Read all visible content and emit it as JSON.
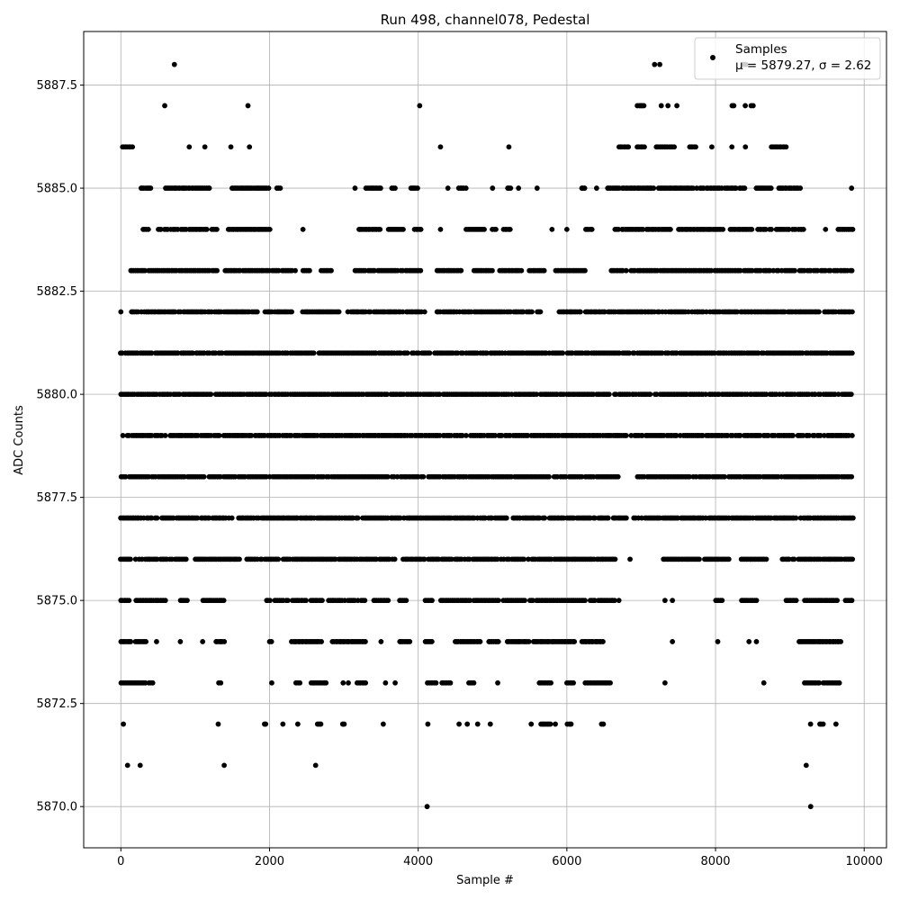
{
  "chart_data": {
    "type": "scatter",
    "title": "Run 498, channel078, Pedestal",
    "xlabel": "Sample #",
    "ylabel": "ADC Counts",
    "xlim": [
      -500,
      10300
    ],
    "ylim": [
      5869.0,
      5888.8
    ],
    "x_ticks": [
      0,
      2000,
      4000,
      6000,
      8000,
      10000
    ],
    "x_tick_labels": [
      "0",
      "2000",
      "4000",
      "6000",
      "8000",
      "10000"
    ],
    "y_ticks": [
      5870.0,
      5872.5,
      5875.0,
      5877.5,
      5880.0,
      5882.5,
      5885.0,
      5887.5
    ],
    "y_tick_labels": [
      "5870.0",
      "5872.5",
      "5875.0",
      "5877.5",
      "5880.0",
      "5882.5",
      "5885.0",
      "5887.5"
    ],
    "grid": true,
    "legend": {
      "placement": "top-right",
      "series_label": "Samples",
      "stats_label": "μ = 5879.27, σ = 2.62"
    },
    "series": [
      {
        "name": "Samples",
        "color": "#000000",
        "n_samples": 9850,
        "mean": 5879.27,
        "std": 2.62,
        "level_ranges": [
          {
            "y": 5870,
            "ranges": [
              [
                4120,
                4120
              ],
              [
                9280,
                9280
              ]
            ]
          },
          {
            "y": 5871,
            "ranges": [
              [
                90,
                90
              ],
              [
                260,
                260
              ],
              [
                1390,
                1390
              ],
              [
                2620,
                2620
              ],
              [
                9220,
                9220
              ]
            ]
          },
          {
            "y": 5872,
            "ranges": [
              [
                30,
                40
              ],
              [
                1310,
                1310
              ],
              [
                1930,
                1960
              ],
              [
                2180,
                2180
              ],
              [
                2380,
                2380
              ],
              [
                2650,
                2700
              ],
              [
                2980,
                3010
              ],
              [
                3530,
                3530
              ],
              [
                4130,
                4130
              ],
              [
                4550,
                4550
              ],
              [
                4660,
                4660
              ],
              [
                4800,
                4800
              ],
              [
                4970,
                4970
              ],
              [
                5520,
                5520
              ],
              [
                5650,
                5800
              ],
              [
                5850,
                5870
              ],
              [
                6010,
                6060
              ],
              [
                6470,
                6500
              ],
              [
                9280,
                9300
              ],
              [
                9400,
                9460
              ],
              [
                9620,
                9620
              ]
            ]
          },
          {
            "y": 5873,
            "ranges": [
              [
                0,
                330
              ],
              [
                380,
                430
              ],
              [
                1320,
                1350
              ],
              [
                2030,
                2030
              ],
              [
                2360,
                2420
              ],
              [
                2560,
                2760
              ],
              [
                2990,
                2990
              ],
              [
                3060,
                3060
              ],
              [
                3180,
                3300
              ],
              [
                3560,
                3560
              ],
              [
                3690,
                3690
              ],
              [
                4130,
                4250
              ],
              [
                4320,
                4450
              ],
              [
                4680,
                4760
              ],
              [
                5070,
                5070
              ],
              [
                5630,
                5800
              ],
              [
                6000,
                6100
              ],
              [
                6250,
                6600
              ],
              [
                7320,
                7320
              ],
              [
                8650,
                8650
              ],
              [
                9200,
                9400
              ],
              [
                9450,
                9680
              ]
            ]
          },
          {
            "y": 5874,
            "ranges": [
              [
                0,
                150
              ],
              [
                200,
                350
              ],
              [
                480,
                480
              ],
              [
                800,
                800
              ],
              [
                1100,
                1100
              ],
              [
                1280,
                1400
              ],
              [
                2000,
                2030
              ],
              [
                2300,
                2700
              ],
              [
                2850,
                3300
              ],
              [
                3500,
                3500
              ],
              [
                3750,
                3900
              ],
              [
                4100,
                4200
              ],
              [
                4500,
                4850
              ],
              [
                4950,
                5100
              ],
              [
                5200,
                5500
              ],
              [
                5550,
                6100
              ],
              [
                6200,
                6500
              ],
              [
                7420,
                7420
              ],
              [
                8030,
                8030
              ],
              [
                8450,
                8450
              ],
              [
                8550,
                8550
              ],
              [
                9130,
                9680
              ]
            ]
          },
          {
            "y": 5875,
            "ranges": [
              [
                0,
                120
              ],
              [
                200,
                600
              ],
              [
                800,
                900
              ],
              [
                1100,
                1400
              ],
              [
                1960,
                3300
              ],
              [
                3400,
                3600
              ],
              [
                3750,
                3850
              ],
              [
                4100,
                4200
              ],
              [
                4300,
                4700
              ],
              [
                4750,
                5100
              ],
              [
                5150,
                5450
              ],
              [
                5500,
                6650
              ],
              [
                6700,
                6700
              ],
              [
                7320,
                7320
              ],
              [
                7420,
                7420
              ],
              [
                8000,
                8100
              ],
              [
                8350,
                8550
              ],
              [
                8950,
                9100
              ],
              [
                9200,
                9650
              ],
              [
                9750,
                9850
              ]
            ]
          },
          {
            "y": 5876,
            "ranges": [
              [
                0,
                150
              ],
              [
                200,
                900
              ],
              [
                1000,
                1600
              ],
              [
                1700,
                3700
              ],
              [
                3800,
                4100
              ],
              [
                4120,
                6650
              ],
              [
                6850,
                6850
              ],
              [
                7300,
                7800
              ],
              [
                7850,
                8200
              ],
              [
                8350,
                8700
              ],
              [
                8900,
                9850
              ]
            ]
          },
          {
            "y": 5877,
            "ranges": [
              [
                0,
                6800
              ],
              [
                6900,
                9850
              ]
            ]
          },
          {
            "y": 5878,
            "ranges": [
              [
                0,
                6700
              ],
              [
                6950,
                9850
              ]
            ]
          },
          {
            "y": 5879,
            "ranges": [
              [
                0,
                9850
              ]
            ]
          },
          {
            "y": 5880,
            "ranges": [
              [
                0,
                5600
              ],
              [
                5650,
                9850
              ]
            ]
          },
          {
            "y": 5881,
            "ranges": [
              [
                0,
                9850
              ]
            ]
          },
          {
            "y": 5882,
            "ranges": [
              [
                0,
                0
              ],
              [
                140,
                2300
              ],
              [
                2450,
                2950
              ],
              [
                3050,
                4100
              ],
              [
                4250,
                5550
              ],
              [
                5600,
                5650
              ],
              [
                5900,
                6200
              ],
              [
                6250,
                9850
              ]
            ]
          },
          {
            "y": 5883,
            "ranges": [
              [
                130,
                1300
              ],
              [
                1400,
                2350
              ],
              [
                2450,
                2550
              ],
              [
                2700,
                2850
              ],
              [
                3150,
                4050
              ],
              [
                4250,
                4600
              ],
              [
                4750,
                5000
              ],
              [
                5100,
                5400
              ],
              [
                5500,
                5700
              ],
              [
                5850,
                6250
              ],
              [
                6600,
                9850
              ]
            ]
          },
          {
            "y": 5884,
            "ranges": [
              [
                300,
                380
              ],
              [
                500,
                1300
              ],
              [
                1450,
                2000
              ],
              [
                2450,
                2450
              ],
              [
                3200,
                3500
              ],
              [
                3600,
                3800
              ],
              [
                3950,
                4050
              ],
              [
                4300,
                4300
              ],
              [
                4650,
                4900
              ],
              [
                5000,
                5050
              ],
              [
                5150,
                5250
              ],
              [
                5800,
                5800
              ],
              [
                6000,
                6000
              ],
              [
                6250,
                6350
              ],
              [
                6650,
                7400
              ],
              [
                7500,
                8100
              ],
              [
                8200,
                8500
              ],
              [
                8550,
                9200
              ],
              [
                9480,
                9480
              ],
              [
                9650,
                9850
              ]
            ]
          },
          {
            "y": 5885,
            "ranges": [
              [
                270,
                420
              ],
              [
                600,
                1200
              ],
              [
                1500,
                2000
              ],
              [
                2100,
                2150
              ],
              [
                3150,
                3150
              ],
              [
                3300,
                3500
              ],
              [
                3650,
                3700
              ],
              [
                3900,
                4000
              ],
              [
                4400,
                4400
              ],
              [
                4550,
                4650
              ],
              [
                5000,
                5000
              ],
              [
                5200,
                5250
              ],
              [
                5350,
                5350
              ],
              [
                5600,
                5600
              ],
              [
                6200,
                6250
              ],
              [
                6400,
                6400
              ],
              [
                6550,
                7700
              ],
              [
                7750,
                8400
              ],
              [
                8550,
                8750
              ],
              [
                8850,
                9150
              ],
              [
                9830,
                9830
              ]
            ]
          },
          {
            "y": 5886,
            "ranges": [
              [
                20,
                160
              ],
              [
                920,
                920
              ],
              [
                1130,
                1130
              ],
              [
                1480,
                1480
              ],
              [
                1730,
                1730
              ],
              [
                4300,
                4300
              ],
              [
                5220,
                5220
              ],
              [
                6700,
                6850
              ],
              [
                6950,
                7050
              ],
              [
                7200,
                7450
              ],
              [
                7650,
                7750
              ],
              [
                7950,
                7950
              ],
              [
                8220,
                8220
              ],
              [
                8400,
                8420
              ],
              [
                8750,
                8950
              ]
            ]
          },
          {
            "y": 5887,
            "ranges": [
              [
                590,
                590
              ],
              [
                1710,
                1710
              ],
              [
                4020,
                4020
              ],
              [
                6950,
                7050
              ],
              [
                7270,
                7270
              ],
              [
                7360,
                7360
              ],
              [
                7480,
                7480
              ],
              [
                8220,
                8260
              ],
              [
                8400,
                8400
              ],
              [
                8480,
                8520
              ]
            ]
          },
          {
            "y": 5888,
            "ranges": [
              [
                720,
                720
              ],
              [
                7180,
                7180
              ],
              [
                7250,
                7250
              ],
              [
                8380,
                8420
              ]
            ]
          }
        ]
      }
    ]
  }
}
